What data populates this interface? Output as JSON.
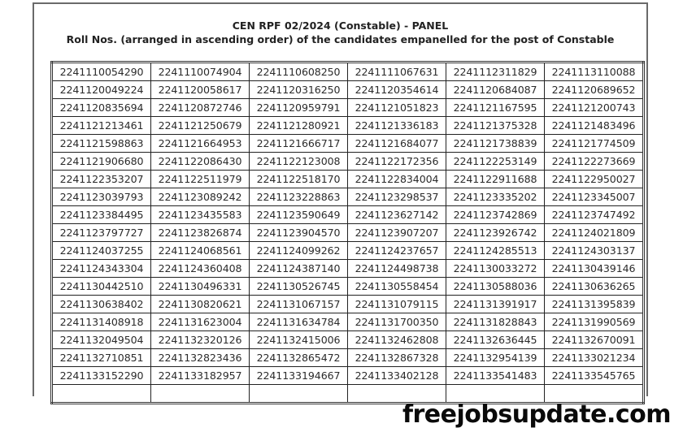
{
  "header": {
    "title": "CEN RPF 02/2024 (Constable) - PANEL",
    "subtitle": "Roll Nos. (arranged in ascending order) of the candidates empanelled for the post of Constable"
  },
  "table": {
    "rows": [
      [
        "2241110054290",
        "2241110074904",
        "2241110608250",
        "2241111067631",
        "2241112311829",
        "2241113110088"
      ],
      [
        "2241120049224",
        "2241120058617",
        "2241120316250",
        "2241120354614",
        "2241120684087",
        "2241120689652"
      ],
      [
        "2241120835694",
        "2241120872746",
        "2241120959791",
        "2241121051823",
        "2241121167595",
        "2241121200743"
      ],
      [
        "2241121213461",
        "2241121250679",
        "2241121280921",
        "2241121336183",
        "2241121375328",
        "2241121483496"
      ],
      [
        "2241121598863",
        "2241121664953",
        "2241121666717",
        "2241121684077",
        "2241121738839",
        "2241121774509"
      ],
      [
        "2241121906680",
        "2241122086430",
        "2241122123008",
        "2241122172356",
        "2241122253149",
        "2241122273669"
      ],
      [
        "2241122353207",
        "2241122511979",
        "2241122518170",
        "2241122834004",
        "2241122911688",
        "2241122950027"
      ],
      [
        "2241123039793",
        "2241123089242",
        "2241123228863",
        "2241123298537",
        "2241123335202",
        "2241123345007"
      ],
      [
        "2241123384495",
        "2241123435583",
        "2241123590649",
        "2241123627142",
        "2241123742869",
        "2241123747492"
      ],
      [
        "2241123797727",
        "2241123826874",
        "2241123904570",
        "2241123907207",
        "2241123926742",
        "2241124021809"
      ],
      [
        "2241124037255",
        "2241124068561",
        "2241124099262",
        "2241124237657",
        "2241124285513",
        "2241124303137"
      ],
      [
        "2241124343304",
        "2241124360408",
        "2241124387140",
        "2241124498738",
        "2241130033272",
        "2241130439146"
      ],
      [
        "2241130442510",
        "2241130496331",
        "2241130526745",
        "2241130558454",
        "2241130588036",
        "2241130636265"
      ],
      [
        "2241130638402",
        "2241130820621",
        "2241131067157",
        "2241131079115",
        "2241131391917",
        "2241131395839"
      ],
      [
        "2241131408918",
        "2241131623004",
        "2241131634784",
        "2241131700350",
        "2241131828843",
        "2241131990569"
      ],
      [
        "2241132049504",
        "2241132320126",
        "2241132415006",
        "2241132462808",
        "2241132636445",
        "2241132670091"
      ],
      [
        "2241132710851",
        "2241132823436",
        "2241132865472",
        "2241132867328",
        "2241132954139",
        "2241133021234"
      ],
      [
        "2241133152290",
        "2241133182957",
        "2241133194667",
        "2241133402128",
        "2241133541483",
        "2241133545765"
      ],
      [
        "",
        "",
        "",
        "",
        "",
        ""
      ]
    ]
  },
  "watermark": "freejobsupdate.com"
}
